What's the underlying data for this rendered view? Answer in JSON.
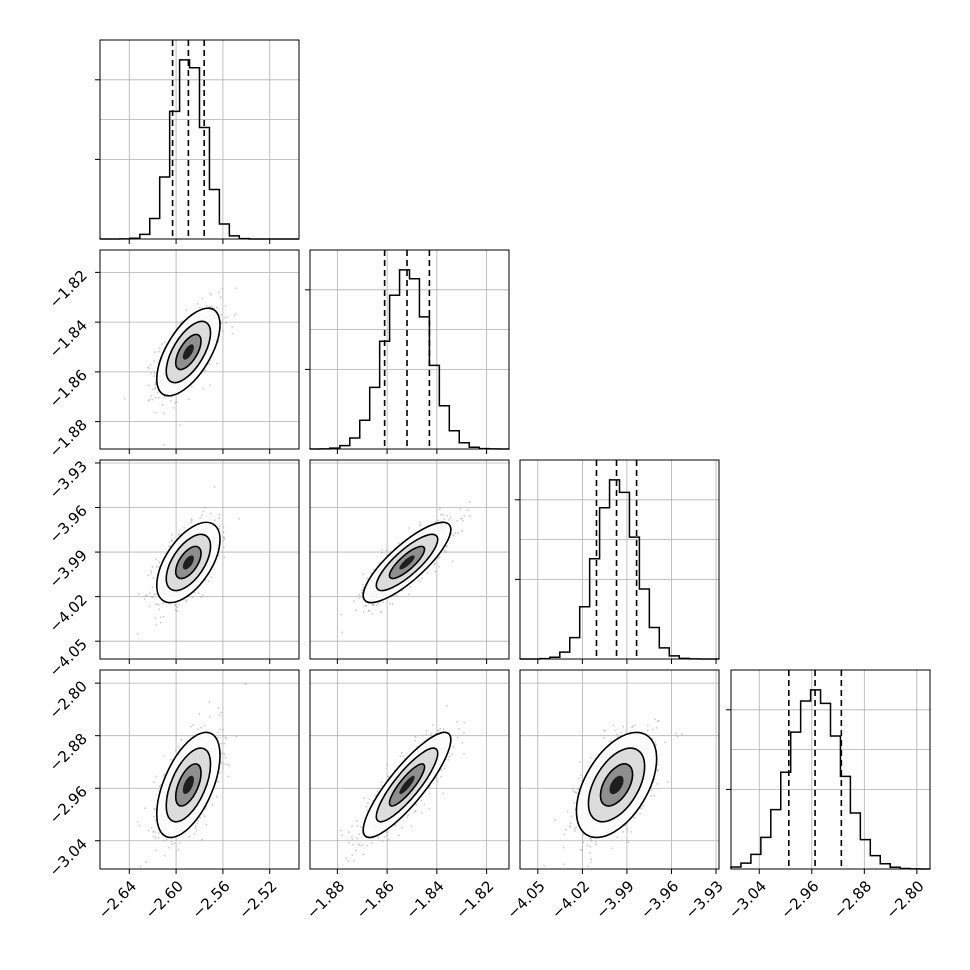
{
  "chart_data": {
    "type": "corner",
    "n_params": 4,
    "grid": true,
    "quantiles": [
      0.16,
      0.5,
      0.84
    ],
    "colors": {
      "frame": "#000000",
      "grid": "#b0b0b0",
      "points": "#9e9e9e",
      "contour": "#000000"
    },
    "axes": [
      {
        "range": [
          -2.665,
          -2.495
        ],
        "ticks": [
          -2.64,
          -2.6,
          -2.56,
          -2.52
        ],
        "tick_labels": [
          "−2.64",
          "−2.60",
          "−2.56",
          "−2.52"
        ],
        "mean": -2.5895,
        "sd": 0.0135
      },
      {
        "range": [
          -1.891,
          -1.811
        ],
        "ticks": [
          -1.88,
          -1.86,
          -1.84,
          -1.82
        ],
        "tick_labels": [
          "−1.88",
          "−1.86",
          "−1.84",
          "−1.82"
        ],
        "mean": -1.852,
        "sd": 0.0088
      },
      {
        "range": [
          -4.062,
          -3.928
        ],
        "ticks": [
          -4.05,
          -4.02,
          -3.99,
          -3.96,
          -3.93
        ],
        "tick_labels": [
          "−4.05",
          "−4.02",
          "−3.99",
          "−3.96",
          "−3.93"
        ],
        "mean": -3.997,
        "sd": 0.0135
      },
      {
        "range": [
          -3.083,
          -2.78
        ],
        "ticks": [
          -3.04,
          -2.96,
          -2.88,
          -2.8
        ],
        "tick_labels": [
          "−3.04",
          "−2.96",
          "−2.88",
          "−2.80"
        ],
        "mean": -2.955,
        "sd": 0.04
      }
    ],
    "quantile_lines": [
      [
        -2.603,
        -2.5895,
        -2.576
      ],
      [
        -1.861,
        -1.852,
        -1.843
      ],
      [
        -4.0105,
        -3.997,
        -3.9835
      ],
      [
        -2.995,
        -2.955,
        -2.915
      ]
    ],
    "correlations": [
      [
        1.0,
        0.62,
        0.57,
        0.56
      ],
      [
        0.62,
        1.0,
        0.82,
        0.86
      ],
      [
        0.57,
        0.82,
        1.0,
        0.5
      ],
      [
        0.56,
        0.86,
        0.5,
        1.0
      ]
    ],
    "histogram_bins": 20,
    "histogram_bin_ranges": [
      [
        -2.665,
        -2.495
      ],
      [
        -1.891,
        -1.811
      ],
      [
        -4.062,
        -3.928
      ],
      [
        -3.083,
        -2.78
      ]
    ]
  }
}
